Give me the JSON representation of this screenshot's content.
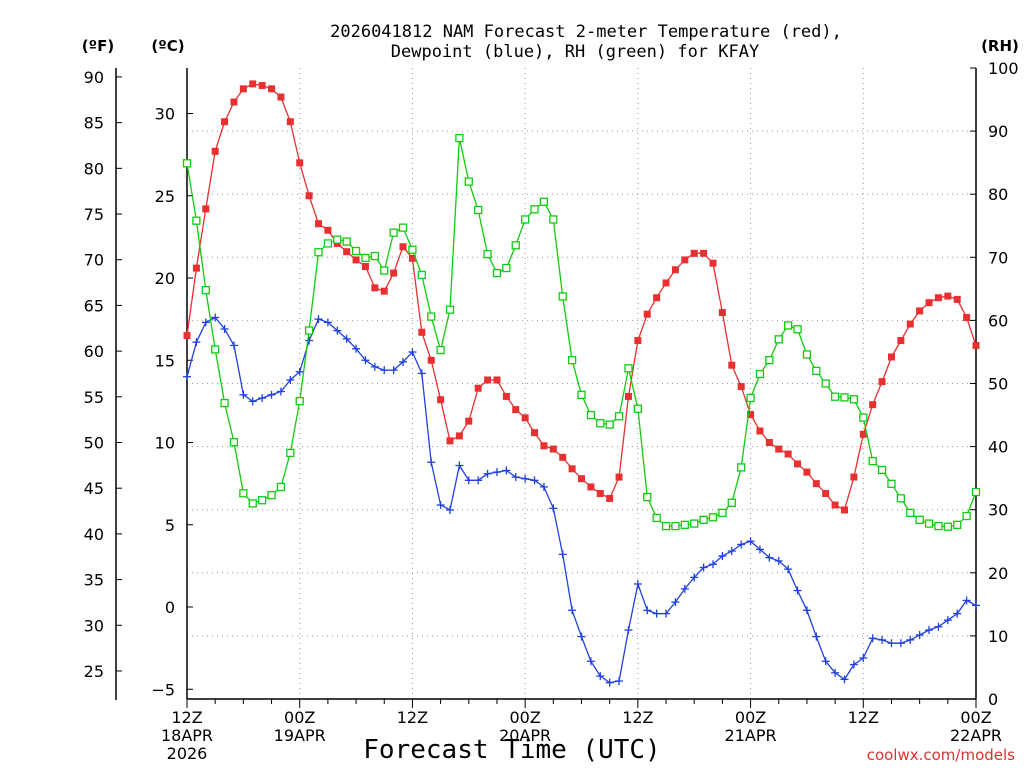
{
  "chart_data": {
    "type": "line",
    "title": "2026041812 NAM Forecast 2-meter Temperature (red),",
    "subtitle": "Dewpoint (blue), RH (green) for KFAY",
    "xlabel": "Forecast Time (UTC)",
    "credit": "coolwx.com/models",
    "left_axis_f": {
      "label": "(ºF)",
      "ticks": [
        "90",
        "85",
        "80",
        "75",
        "70",
        "65",
        "60",
        "55",
        "50",
        "45",
        "40",
        "35",
        "30",
        "25"
      ]
    },
    "left_axis_c": {
      "label": "(ºC)",
      "ticks": [
        "30",
        "25",
        "20",
        "15",
        "10",
        "5",
        "0",
        "−5"
      ],
      "ylim": [
        -5.5,
        33
      ]
    },
    "right_axis": {
      "label": "(RH)",
      "ticks": [
        "100",
        "90",
        "80",
        "70",
        "60",
        "50",
        "40",
        "30",
        "20",
        "10",
        "0"
      ],
      "ylim": [
        0,
        100
      ]
    },
    "x_ticks": [
      {
        "line1": "12Z",
        "line2": "18APR",
        "line3": "2026"
      },
      {
        "line1": "00Z",
        "line2": "19APR",
        "line3": ""
      },
      {
        "line1": "12Z",
        "line2": "",
        "line3": ""
      },
      {
        "line1": "00Z",
        "line2": "20APR",
        "line3": ""
      },
      {
        "line1": "12Z",
        "line2": "",
        "line3": ""
      },
      {
        "line1": "00Z",
        "line2": "21APR",
        "line3": ""
      },
      {
        "line1": "12Z",
        "line2": "",
        "line3": ""
      },
      {
        "line1": "00Z",
        "line2": "22APR",
        "line3": ""
      }
    ],
    "x_hours_range": [
      0,
      84
    ],
    "series": [
      {
        "name": "Temperature",
        "unit": "C",
        "color": "#e83030",
        "marker": "filled-square",
        "hours": [
          0,
          1,
          2,
          3,
          4,
          5,
          6,
          7,
          8,
          9,
          10,
          11,
          12,
          13,
          14,
          15,
          16,
          17,
          18,
          19,
          20,
          21,
          22,
          23,
          24,
          25,
          26,
          27,
          28,
          29,
          30,
          31,
          32,
          33,
          34,
          35,
          36,
          37,
          38,
          39,
          40,
          41,
          42,
          43,
          44,
          45,
          46,
          47,
          48,
          49,
          50,
          51,
          52,
          53,
          54,
          55,
          56,
          57,
          58,
          59,
          60,
          61,
          62,
          63,
          64,
          65,
          66,
          67,
          68,
          69,
          70,
          71,
          72,
          73,
          74,
          75,
          76,
          77,
          78,
          79,
          80,
          81,
          82,
          83,
          84
        ],
        "values": [
          16.5,
          20.6,
          24.2,
          27.7,
          29.5,
          30.7,
          31.5,
          31.8,
          31.7,
          31.5,
          31.0,
          29.5,
          27.0,
          25.0,
          23.3,
          22.9,
          22.1,
          21.6,
          21.1,
          20.7,
          19.4,
          19.2,
          20.3,
          21.9,
          21.2,
          16.7,
          15.0,
          12.6,
          10.1,
          10.4,
          11.3,
          13.3,
          13.8,
          13.8,
          12.8,
          12.0,
          11.5,
          10.6,
          9.8,
          9.6,
          9.1,
          8.4,
          7.8,
          7.3,
          6.9,
          6.6,
          7.9,
          12.8,
          16.2,
          17.8,
          18.8,
          19.7,
          20.5,
          21.1,
          21.5,
          21.5,
          20.9,
          17.9,
          14.7,
          13.4,
          11.7,
          10.7,
          10.0,
          9.6,
          9.3,
          8.7,
          8.2,
          7.5,
          6.9,
          6.2,
          5.9,
          7.9,
          10.5,
          12.3,
          13.7,
          15.2,
          16.2,
          17.2,
          18.0,
          18.5,
          18.8,
          18.9,
          18.7,
          17.6,
          15.9
        ]
      },
      {
        "name": "Dewpoint",
        "unit": "C",
        "color": "#2040e0",
        "marker": "plus",
        "hours": [
          0,
          1,
          2,
          3,
          4,
          5,
          6,
          7,
          8,
          9,
          10,
          11,
          12,
          13,
          14,
          15,
          16,
          17,
          18,
          19,
          20,
          21,
          22,
          23,
          24,
          25,
          26,
          27,
          28,
          29,
          30,
          31,
          32,
          33,
          34,
          35,
          36,
          37,
          38,
          39,
          40,
          41,
          42,
          43,
          44,
          45,
          46,
          47,
          48,
          49,
          50,
          51,
          52,
          53,
          54,
          55,
          56,
          57,
          58,
          59,
          60,
          61,
          62,
          63,
          64,
          65,
          66,
          67,
          68,
          69,
          70,
          71,
          72,
          73,
          74,
          75,
          76,
          77,
          78,
          79,
          80,
          81,
          82,
          83,
          84
        ],
        "values": [
          14.0,
          16.1,
          17.3,
          17.6,
          16.9,
          15.9,
          12.9,
          12.5,
          12.7,
          12.9,
          13.1,
          13.8,
          14.3,
          16.2,
          17.5,
          17.3,
          16.8,
          16.3,
          15.7,
          15.0,
          14.6,
          14.4,
          14.4,
          14.9,
          15.5,
          14.2,
          8.8,
          6.2,
          5.9,
          8.6,
          7.7,
          7.7,
          8.1,
          8.2,
          8.3,
          7.9,
          7.8,
          7.7,
          7.3,
          6.0,
          3.2,
          -0.2,
          -1.8,
          -3.3,
          -4.2,
          -4.6,
          -4.5,
          -1.4,
          1.4,
          -0.2,
          -0.4,
          -0.4,
          0.3,
          1.1,
          1.8,
          2.4,
          2.6,
          3.1,
          3.4,
          3.8,
          4.0,
          3.5,
          3.0,
          2.8,
          2.3,
          1.0,
          -0.2,
          -1.8,
          -3.3,
          -4.0,
          -4.4,
          -3.5,
          -3.1,
          -1.9,
          -2.0,
          -2.2,
          -2.2,
          -2.0,
          -1.7,
          -1.4,
          -1.2,
          -0.8,
          -0.4,
          0.4,
          0.1
        ]
      },
      {
        "name": "RH",
        "unit": "%",
        "color": "#10cc10",
        "marker": "open-square",
        "hours": [
          0,
          1,
          2,
          3,
          4,
          5,
          6,
          7,
          8,
          9,
          10,
          11,
          12,
          13,
          14,
          15,
          16,
          17,
          18,
          19,
          20,
          21,
          22,
          23,
          24,
          25,
          26,
          27,
          28,
          29,
          30,
          31,
          32,
          33,
          34,
          35,
          36,
          37,
          38,
          39,
          40,
          41,
          42,
          43,
          44,
          45,
          46,
          47,
          48,
          49,
          50,
          51,
          52,
          53,
          54,
          55,
          56,
          57,
          58,
          59,
          60,
          61,
          62,
          63,
          64,
          65,
          66,
          67,
          68,
          69,
          70,
          71,
          72,
          73,
          74,
          75,
          76,
          77,
          78,
          79,
          80,
          81,
          82,
          83,
          84
        ],
        "values": [
          84.9,
          75.8,
          64.8,
          55.4,
          46.9,
          40.7,
          32.6,
          31.0,
          31.5,
          32.3,
          33.6,
          39.0,
          47.2,
          58.4,
          70.8,
          72.2,
          72.8,
          72.5,
          71.0,
          69.9,
          70.2,
          67.9,
          73.9,
          74.7,
          71.2,
          67.2,
          60.6,
          55.3,
          61.7,
          88.9,
          82.0,
          77.5,
          70.5,
          67.5,
          68.3,
          71.9,
          76.0,
          77.6,
          78.8,
          76.0,
          63.8,
          53.7,
          48.2,
          45.0,
          43.7,
          43.5,
          44.8,
          52.4,
          46.0,
          32.0,
          28.7,
          27.4,
          27.4,
          27.6,
          27.8,
          28.4,
          28.8,
          29.5,
          31.1,
          36.7,
          47.7,
          51.5,
          53.7,
          57.0,
          59.2,
          58.6,
          54.6,
          52.0,
          50.0,
          47.9,
          47.8,
          47.5,
          44.6,
          37.7,
          36.3,
          34.1,
          31.8,
          29.5,
          28.4,
          27.8,
          27.4,
          27.3,
          27.6,
          29.0,
          32.8
        ]
      }
    ]
  }
}
